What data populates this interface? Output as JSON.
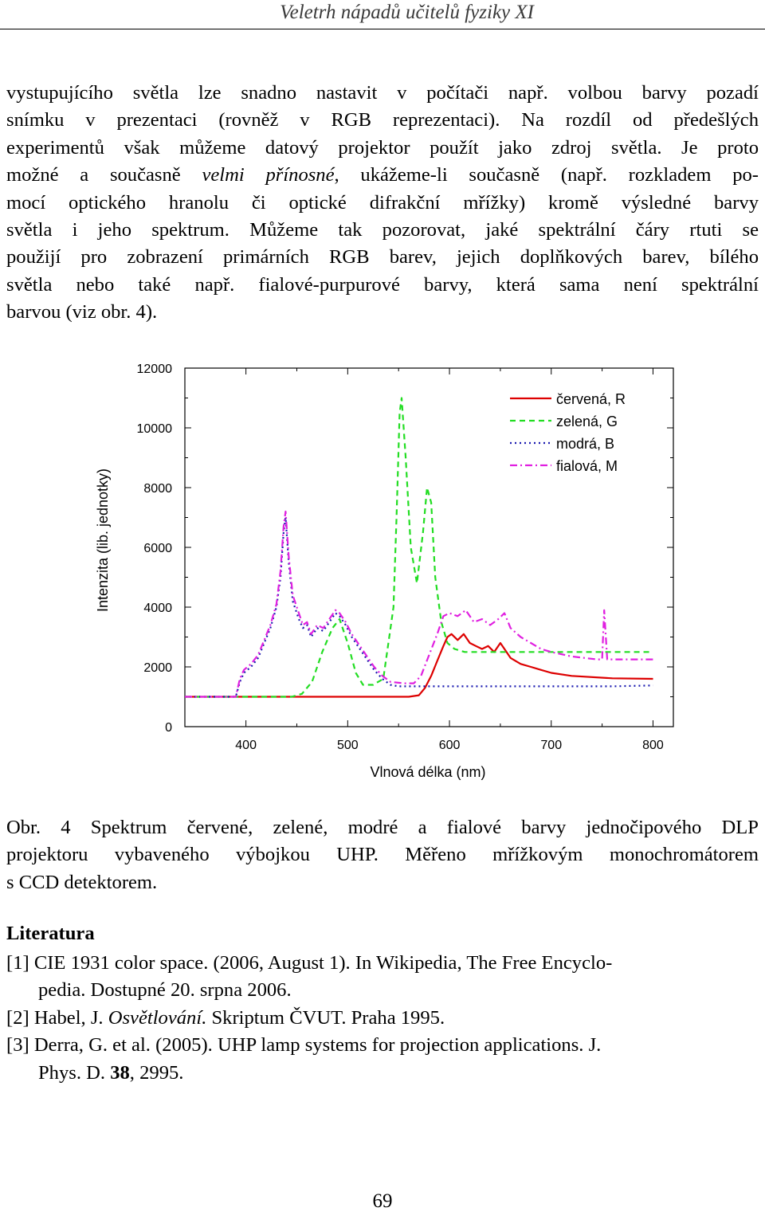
{
  "header": {
    "title": "Veletrh nápadů učitelů fyziky XI"
  },
  "body_lines": [
    "vystupujícího světla lze snadno nastavit v počítači např. volbou barvy pozadí",
    "snímku v prezentaci (rovněž v RGB reprezentaci). Na rozdíl od předešlých",
    "experimentů však můžeme datový projektor použít jako zdroj světla. Je proto",
    "možné a současně |velmi přínosné|, ukážeme-li současně (např. rozkladem po-",
    "mocí optického hranolu či optické difrakční mřížky) kromě výsledné barvy",
    "světla i jeho spektrum. Můžeme tak pozorovat, jaké spektrální čáry rtuti se",
    "použijí pro zobrazení primárních RGB barev, jejich doplňkových barev, bílého",
    "světla nebo také např. fialové-purpurové barvy, která sama není spektrální",
    "barvou (viz obr. 4)."
  ],
  "body_italic": {
    "line4_before": "možné a současně ",
    "line4_italic": "velmi přínosné",
    "line4_after": ", ukážeme-li současně (např. rozkladem po-"
  },
  "chart_data": {
    "type": "line",
    "xlabel": "Vlnová délka (nm)",
    "ylabel": "Intenzita (lib. jednotky)",
    "xlim": [
      340,
      820
    ],
    "ylim": [
      0,
      12000
    ],
    "x_ticks": [
      "400",
      "500",
      "600",
      "700",
      "800"
    ],
    "y_ticks": [
      "0",
      "2000",
      "4000",
      "6000",
      "8000",
      "10000",
      "12000"
    ],
    "legend_position": "top-right",
    "series": [
      {
        "name": "červená, R",
        "color": "#dd0000",
        "style": "solid",
        "points": [
          [
            340,
            1000
          ],
          [
            400,
            1000
          ],
          [
            500,
            1000
          ],
          [
            560,
            1000
          ],
          [
            570,
            1050
          ],
          [
            576,
            1300
          ],
          [
            582,
            1700
          ],
          [
            588,
            2200
          ],
          [
            594,
            2700
          ],
          [
            598,
            3000
          ],
          [
            602,
            3100
          ],
          [
            608,
            2900
          ],
          [
            614,
            3100
          ],
          [
            620,
            2800
          ],
          [
            626,
            2700
          ],
          [
            632,
            2600
          ],
          [
            638,
            2700
          ],
          [
            644,
            2500
          ],
          [
            650,
            2800
          ],
          [
            656,
            2500
          ],
          [
            660,
            2300
          ],
          [
            670,
            2100
          ],
          [
            680,
            2000
          ],
          [
            690,
            1900
          ],
          [
            700,
            1800
          ],
          [
            720,
            1700
          ],
          [
            760,
            1620
          ],
          [
            800,
            1600
          ]
        ]
      },
      {
        "name": "zelená, G",
        "color": "#22dd22",
        "style": "dashed",
        "points": [
          [
            340,
            1000
          ],
          [
            400,
            1000
          ],
          [
            445,
            1000
          ],
          [
            455,
            1100
          ],
          [
            465,
            1500
          ],
          [
            475,
            2500
          ],
          [
            485,
            3300
          ],
          [
            492,
            3600
          ],
          [
            500,
            2800
          ],
          [
            508,
            1800
          ],
          [
            515,
            1400
          ],
          [
            525,
            1400
          ],
          [
            535,
            1600
          ],
          [
            545,
            4000
          ],
          [
            548,
            7000
          ],
          [
            551,
            10500
          ],
          [
            553,
            11000
          ],
          [
            557,
            9000
          ],
          [
            562,
            6000
          ],
          [
            568,
            4800
          ],
          [
            574,
            6500
          ],
          [
            578,
            8000
          ],
          [
            582,
            7500
          ],
          [
            586,
            5000
          ],
          [
            592,
            3500
          ],
          [
            598,
            2800
          ],
          [
            605,
            2600
          ],
          [
            615,
            2500
          ],
          [
            650,
            2500
          ],
          [
            700,
            2500
          ],
          [
            760,
            2500
          ],
          [
            800,
            2500
          ]
        ]
      },
      {
        "name": "modrá, B",
        "color": "#1a1ab0",
        "style": "dotted",
        "points": [
          [
            340,
            1000
          ],
          [
            390,
            1000
          ],
          [
            394,
            1500
          ],
          [
            398,
            1800
          ],
          [
            405,
            2000
          ],
          [
            412,
            2300
          ],
          [
            418,
            2800
          ],
          [
            424,
            3300
          ],
          [
            430,
            4000
          ],
          [
            434,
            5000
          ],
          [
            437,
            6500
          ],
          [
            439,
            7000
          ],
          [
            442,
            5500
          ],
          [
            446,
            4200
          ],
          [
            452,
            3600
          ],
          [
            456,
            3300
          ],
          [
            460,
            3400
          ],
          [
            464,
            3000
          ],
          [
            470,
            3300
          ],
          [
            476,
            3200
          ],
          [
            482,
            3500
          ],
          [
            488,
            3800
          ],
          [
            492,
            3700
          ],
          [
            498,
            3400
          ],
          [
            504,
            3000
          ],
          [
            510,
            2700
          ],
          [
            518,
            2300
          ],
          [
            526,
            1900
          ],
          [
            534,
            1600
          ],
          [
            542,
            1400
          ],
          [
            550,
            1350
          ],
          [
            560,
            1350
          ],
          [
            580,
            1350
          ],
          [
            600,
            1350
          ],
          [
            650,
            1350
          ],
          [
            700,
            1350
          ],
          [
            760,
            1350
          ],
          [
            800,
            1380
          ]
        ]
      },
      {
        "name": "fialová, M",
        "color": "#e020e0",
        "style": "dashdot",
        "points": [
          [
            340,
            1000
          ],
          [
            390,
            1000
          ],
          [
            394,
            1600
          ],
          [
            398,
            1900
          ],
          [
            405,
            2100
          ],
          [
            412,
            2400
          ],
          [
            418,
            2900
          ],
          [
            424,
            3400
          ],
          [
            430,
            4100
          ],
          [
            434,
            5200
          ],
          [
            437,
            6700
          ],
          [
            439,
            7200
          ],
          [
            442,
            5700
          ],
          [
            446,
            4400
          ],
          [
            452,
            3800
          ],
          [
            456,
            3400
          ],
          [
            460,
            3500
          ],
          [
            464,
            3100
          ],
          [
            470,
            3400
          ],
          [
            476,
            3300
          ],
          [
            482,
            3600
          ],
          [
            488,
            3900
          ],
          [
            492,
            3800
          ],
          [
            498,
            3500
          ],
          [
            504,
            3100
          ],
          [
            510,
            2800
          ],
          [
            518,
            2400
          ],
          [
            526,
            2000
          ],
          [
            534,
            1700
          ],
          [
            542,
            1500
          ],
          [
            555,
            1450
          ],
          [
            565,
            1450
          ],
          [
            572,
            1700
          ],
          [
            580,
            2400
          ],
          [
            588,
            3100
          ],
          [
            594,
            3700
          ],
          [
            600,
            3800
          ],
          [
            608,
            3700
          ],
          [
            616,
            3900
          ],
          [
            624,
            3500
          ],
          [
            632,
            3600
          ],
          [
            640,
            3400
          ],
          [
            648,
            3600
          ],
          [
            654,
            3800
          ],
          [
            660,
            3300
          ],
          [
            670,
            3000
          ],
          [
            680,
            2800
          ],
          [
            690,
            2600
          ],
          [
            700,
            2500
          ],
          [
            720,
            2350
          ],
          [
            745,
            2250
          ],
          [
            750,
            2250
          ],
          [
            752,
            3900
          ],
          [
            755,
            2250
          ],
          [
            780,
            2250
          ],
          [
            800,
            2250
          ]
        ]
      }
    ]
  },
  "caption_lines": [
    "Obr. 4 Spektrum červené, zelené, modré a fialové barvy jednočipového DLP",
    "projektoru vybaveného výbojkou UHP. Měřeno mřížkovým monochromátorem",
    "s CCD detektorem."
  ],
  "literature": {
    "heading": "Literatura",
    "ref1_a": "[1] CIE 1931 color space. (2006, August 1). In Wikipedia, The Free Encyclo-",
    "ref1_b": "pedia. Dostupné 20. srpna 2006.",
    "ref2_a": "[2] Habel, J. ",
    "ref2_italic": "Osvětlování.",
    "ref2_b": " Skriptum ČVUT. Praha 1995.",
    "ref3_a": "[3] Derra, G. et al. (2005). UHP lamp systems for projection applications. J.",
    "ref3_b_pre": "Phys. D. ",
    "ref3_b_bold": "38",
    "ref3_b_post": ", 2995."
  },
  "page_number": "69"
}
